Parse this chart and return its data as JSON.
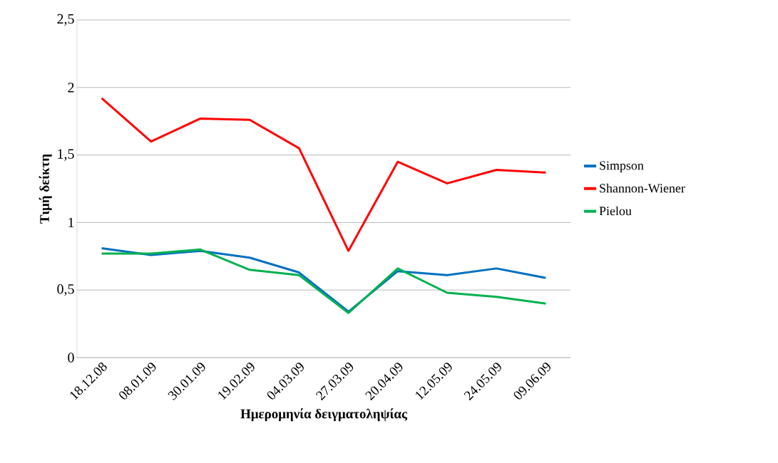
{
  "chart_data": {
    "type": "line",
    "xlabel": "Ημερομηνία δειγματοληψίας",
    "ylabel": "Τιμή δείκτη",
    "categories": [
      "18.12.08",
      "08.01.09",
      "30.01.09",
      "19.02.09",
      "04.03.09",
      "27.03.09",
      "20.04.09",
      "12.05.09",
      "24.05.09",
      "09.06.09"
    ],
    "series": [
      {
        "name": "Simpson",
        "color": "#0070c0",
        "values": [
          0.81,
          0.76,
          0.79,
          0.74,
          0.63,
          0.34,
          0.64,
          0.61,
          0.66,
          0.59
        ]
      },
      {
        "name": "Shannon-Wiener",
        "color": "#ff0000",
        "values": [
          1.92,
          1.6,
          1.77,
          1.76,
          1.55,
          0.79,
          1.45,
          1.29,
          1.39,
          1.37
        ]
      },
      {
        "name": "Pielou",
        "color": "#00b050",
        "values": [
          0.77,
          0.77,
          0.8,
          0.65,
          0.61,
          0.33,
          0.66,
          0.48,
          0.45,
          0.4
        ]
      }
    ],
    "ylim": [
      0,
      2.5
    ],
    "yticks": [
      0,
      {
        "value": 0.5,
        "label": "0,5"
      },
      1,
      {
        "value": 1.5,
        "label": "1,5"
      },
      2,
      {
        "value": 2.5,
        "label": "2,5"
      }
    ],
    "grid": "y",
    "legend": "right",
    "marker": "none",
    "line_style": "solid"
  }
}
